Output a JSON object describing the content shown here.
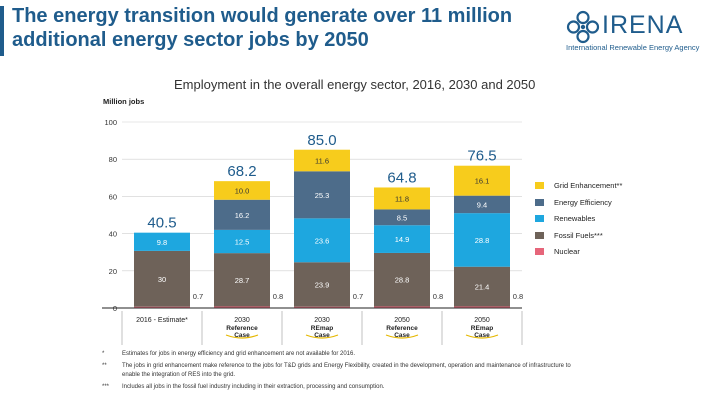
{
  "headline": {
    "line1": "The energy transition would generate over 11 million",
    "line2": "additional energy sector jobs by 2050"
  },
  "logo": {
    "brand": "IRENA",
    "subtitle": "International Renewable Energy Agency",
    "icon": "irena-rings-logo"
  },
  "colors": {
    "nuclear": "#e6657a",
    "fossil": "#6e6259",
    "renewables": "#1ea7df",
    "efficiency": "#4d6c8a",
    "grid": "#f7cc1c",
    "total_label": "#1f5c8c",
    "headline": "#1f5c8c"
  },
  "chart_data": {
    "type": "bar",
    "stacked": true,
    "title": "Employment in the overall energy sector, 2016, 2030 and 2050",
    "ylabel": "Million jobs",
    "xlabel": "",
    "ylim": [
      0,
      100
    ],
    "yticks": [
      0,
      20,
      40,
      60,
      80,
      100
    ],
    "grid": true,
    "legend_position": "right",
    "categories": [
      {
        "label": "2016 - Estimate*",
        "sublabel": ""
      },
      {
        "label": "2030",
        "sublabel": "Reference Case"
      },
      {
        "label": "2030",
        "sublabel": "REmap Case"
      },
      {
        "label": "2050",
        "sublabel": "Reference Case"
      },
      {
        "label": "2050",
        "sublabel": "REmap Case"
      }
    ],
    "series": [
      {
        "name": "Nuclear",
        "key": "nuclear",
        "values": [
          0.7,
          0.8,
          0.7,
          0.8,
          0.8
        ],
        "labels": [
          "0.7",
          "0.8",
          "0.7",
          "0.8",
          "0.8"
        ]
      },
      {
        "name": "Fossil Fuels***",
        "key": "fossil",
        "values": [
          30,
          28.7,
          23.9,
          28.8,
          21.4
        ],
        "labels": [
          "30",
          "28.7",
          "23.9",
          "28.8",
          "21.4"
        ]
      },
      {
        "name": "Renewables",
        "key": "renewables",
        "values": [
          9.8,
          12.5,
          23.6,
          14.9,
          28.8
        ],
        "labels": [
          "9.8",
          "12.5",
          "23.6",
          "14.9",
          "28.8"
        ]
      },
      {
        "name": "Energy Efficiency",
        "key": "efficiency",
        "values": [
          0,
          16.2,
          25.3,
          8.5,
          9.4
        ],
        "labels": [
          "",
          "16.2",
          "25.3",
          "8.5",
          "9.4"
        ]
      },
      {
        "name": "Grid Enhancement**",
        "key": "grid",
        "values": [
          0,
          10.0,
          11.6,
          11.8,
          16.1
        ],
        "labels": [
          "",
          "10.0",
          "11.6",
          "11.8",
          "16.1"
        ]
      }
    ],
    "totals": [
      40.5,
      68.2,
      85.0,
      64.8,
      76.5
    ],
    "total_labels": [
      "40.5",
      "68.2",
      "85.0",
      "64.8",
      "76.5"
    ]
  },
  "notes": [
    {
      "marker": "*",
      "text": "Estimates for jobs in energy efficiency and grid enhancement are not available for 2016."
    },
    {
      "marker": "**",
      "text": "The jobs in grid enhancement make reference to the jobs for T&D grids and Energy Flexibility, created in the development, operation and maintenance of infrastructure to enable the integration of RES into the grid."
    },
    {
      "marker": "***",
      "text": "Includes all jobs in the fossil fuel industry including in their extraction, processing and consumption."
    }
  ]
}
